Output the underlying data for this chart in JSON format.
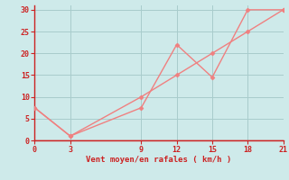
{
  "line1_x": [
    0,
    3,
    9,
    12,
    15,
    18,
    21
  ],
  "line1_y": [
    7.5,
    1,
    7.5,
    22,
    14.5,
    30,
    30
  ],
  "line2_x": [
    0,
    3,
    9,
    12,
    15,
    18,
    21
  ],
  "line2_y": [
    7.5,
    1,
    10,
    15,
    20,
    25,
    30
  ],
  "line_color": "#f08080",
  "bg_color": "#ceeaea",
  "grid_color": "#a8cccc",
  "axis_color": "#cc2222",
  "tick_color": "#cc2222",
  "xlabel": "Vent moyen/en rafales ( km/h )",
  "xticks": [
    0,
    3,
    9,
    12,
    15,
    18,
    21
  ],
  "yticks": [
    0,
    5,
    10,
    15,
    20,
    25,
    30
  ],
  "xlim": [
    0,
    21
  ],
  "ylim": [
    0,
    31
  ],
  "marker": "D",
  "marker_size": 2.5,
  "line_width": 1.0
}
